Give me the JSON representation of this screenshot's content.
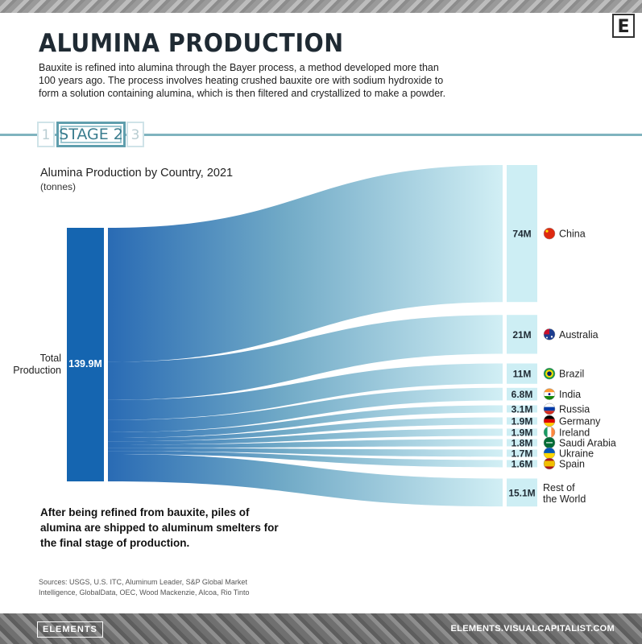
{
  "header": {
    "title": "ALUMINA PRODUCTION",
    "intro": "Bauxite is refined into alumina through the Bayer process, a method developed more than 100 years ago. The process involves heating crushed bauxite ore with sodium hydroxide to form a solution containing alumina, which is then filtered and crystallized to make a powder.",
    "logo_letter": "E"
  },
  "stages": {
    "prev": "1",
    "current": "STAGE 2",
    "next": "3"
  },
  "chart_data": {
    "type": "sankey",
    "title": "Alumina Production by Country, 2021",
    "subtitle": "(tonnes)",
    "source_label": "Total Production",
    "source_value_label": "139.9M",
    "total": 139.9,
    "unit": "M tonnes",
    "nodes": [
      {
        "name": "China",
        "value": 74,
        "value_label": "74M"
      },
      {
        "name": "Australia",
        "value": 21,
        "value_label": "21M"
      },
      {
        "name": "Brazil",
        "value": 11,
        "value_label": "11M"
      },
      {
        "name": "India",
        "value": 6.8,
        "value_label": "6.8M"
      },
      {
        "name": "Russia",
        "value": 3.1,
        "value_label": "3.1M"
      },
      {
        "name": "Germany",
        "value": 1.9,
        "value_label": "1.9M"
      },
      {
        "name": "Ireland",
        "value": 1.9,
        "value_label": "1.9M"
      },
      {
        "name": "Saudi Arabia",
        "value": 1.8,
        "value_label": "1.8M"
      },
      {
        "name": "Ukraine",
        "value": 1.7,
        "value_label": "1.7M"
      },
      {
        "name": "Spain",
        "value": 1.6,
        "value_label": "1.6M"
      },
      {
        "name": "Rest of the World",
        "value": 15.1,
        "value_label": "15.1M"
      }
    ],
    "flag_icons": [
      "china-flag-icon",
      "australia-flag-icon",
      "brazil-flag-icon",
      "india-flag-icon",
      "russia-flag-icon",
      "germany-flag-icon",
      "ireland-flag-icon",
      "saudi-arabia-flag-icon",
      "ukraine-flag-icon",
      "spain-flag-icon"
    ],
    "colors": {
      "source": "#1565b0",
      "flow_start": "#1e63b0",
      "flow_end": "#cfeef4",
      "node": "#cdeef4"
    }
  },
  "takeaway": "After being refined from bauxite, piles of alumina are shipped to aluminum smelters for the final stage of production.",
  "sources": "Sources: USGS, U.S. ITC, Aluminum Leader, S&P Global Market Intelligence, GlobalData, OEC, Wood Mackenzie, Alcoa, Rio Tinto",
  "footer": {
    "brand": "ELEMENTS",
    "url": "ELEMENTS.VISUALCAPITALIST.COM"
  }
}
